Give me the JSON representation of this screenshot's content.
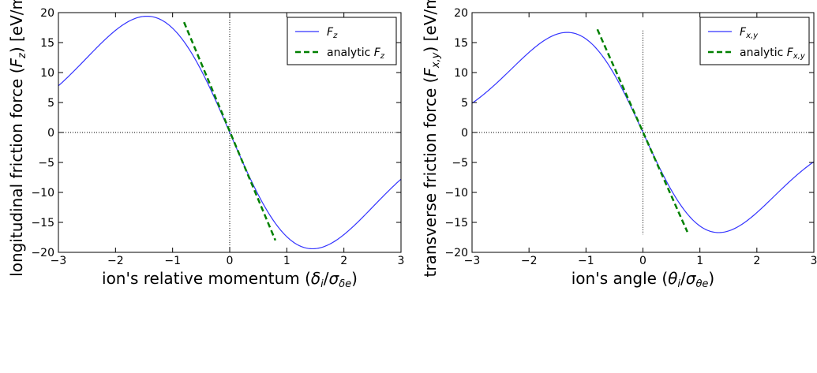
{
  "chart_data": [
    {
      "type": "line",
      "xlabel": "ion's relative momentum (δ_i/σ_δe)",
      "xlabel_parts": {
        "prefix": "ion's relative momentum (",
        "num": "δ",
        "num_sub": "i",
        "den": "σ",
        "den_sub": "δe",
        "suffix": ")"
      },
      "ylabel": "longitudinal friction force (F_z) [eV/m]",
      "ylabel_parts": {
        "prefix": "longitudinal friction force (",
        "var": "F",
        "var_sub": "z",
        "suffix": ") [eV/m]"
      },
      "xlim": [
        -3,
        3
      ],
      "ylim": [
        -20,
        20
      ],
      "xticks": [
        -3,
        -2,
        -1,
        0,
        1,
        2,
        3
      ],
      "yticks": [
        20,
        15,
        10,
        5,
        0,
        -5,
        -10,
        -15,
        -20
      ],
      "xtick_labels": [
        "−3",
        "−2",
        "−1",
        "0",
        "1",
        "2",
        "3"
      ],
      "ytick_labels": [
        "20",
        "15",
        "10",
        "5",
        "0",
        "−5",
        "−10",
        "−15",
        "−20"
      ],
      "legend_position": "top-right",
      "series": [
        {
          "name": "F_z",
          "legend": {
            "prefix": "",
            "var": "F",
            "sub": "z"
          },
          "style": "solid",
          "color": "#3333ff",
          "curve": "derivative-of-gaussian",
          "peak_x": 1.45,
          "peak_y": -19.4,
          "x_range": [
            -3,
            3
          ]
        },
        {
          "name": "analytic F_z",
          "legend": {
            "prefix": "analytic ",
            "var": "F",
            "sub": "z"
          },
          "style": "dashed",
          "color": "#008000",
          "x": [
            -0.8,
            0.8
          ],
          "y": [
            18.4,
            -18.0
          ]
        }
      ],
      "reference_lines": {
        "horizontal_at": 0,
        "vertical_at": 0,
        "vertical_span": "full"
      }
    },
    {
      "type": "line",
      "xlabel": "ion's angle (θ_i/σ_θe)",
      "xlabel_parts": {
        "prefix": "ion's angle (",
        "num": "θ",
        "num_sub": "i",
        "den": "σ",
        "den_sub": "θe",
        "suffix": ")"
      },
      "ylabel": "transverse friction force (F_x,y) [eV/m]",
      "ylabel_parts": {
        "prefix": "transverse friction force (",
        "var": "F",
        "var_sub": "x,y",
        "suffix": ") [eV/m]"
      },
      "xlim": [
        -3,
        3
      ],
      "ylim": [
        -20,
        20
      ],
      "xticks": [
        -3,
        -2,
        -1,
        0,
        1,
        2,
        3
      ],
      "yticks": [
        20,
        15,
        10,
        5,
        0,
        -5,
        -10,
        -15,
        -20
      ],
      "xtick_labels": [
        "−3",
        "−2",
        "−1",
        "0",
        "1",
        "2",
        "3"
      ],
      "ytick_labels": [
        "20",
        "15",
        "10",
        "5",
        "0",
        "−5",
        "−10",
        "−15",
        "−20"
      ],
      "legend_position": "top-right",
      "series": [
        {
          "name": "F_x,y",
          "legend": {
            "prefix": "",
            "var": "F",
            "sub": "x,y"
          },
          "style": "solid",
          "color": "#3333ff",
          "curve": "derivative-of-gaussian",
          "peak_x": 1.33,
          "peak_y": -16.7,
          "x_range": [
            -3,
            3
          ]
        },
        {
          "name": "analytic F_x,y",
          "legend": {
            "prefix": "analytic ",
            "var": "F",
            "sub": "x,y"
          },
          "style": "dashed",
          "color": "#008000",
          "x": [
            -0.8,
            0.78
          ],
          "y": [
            17.2,
            -16.6
          ]
        }
      ],
      "reference_lines": {
        "horizontal_at": 0,
        "vertical_at": 0,
        "vertical_span": [
          -17,
          17
        ]
      }
    }
  ]
}
